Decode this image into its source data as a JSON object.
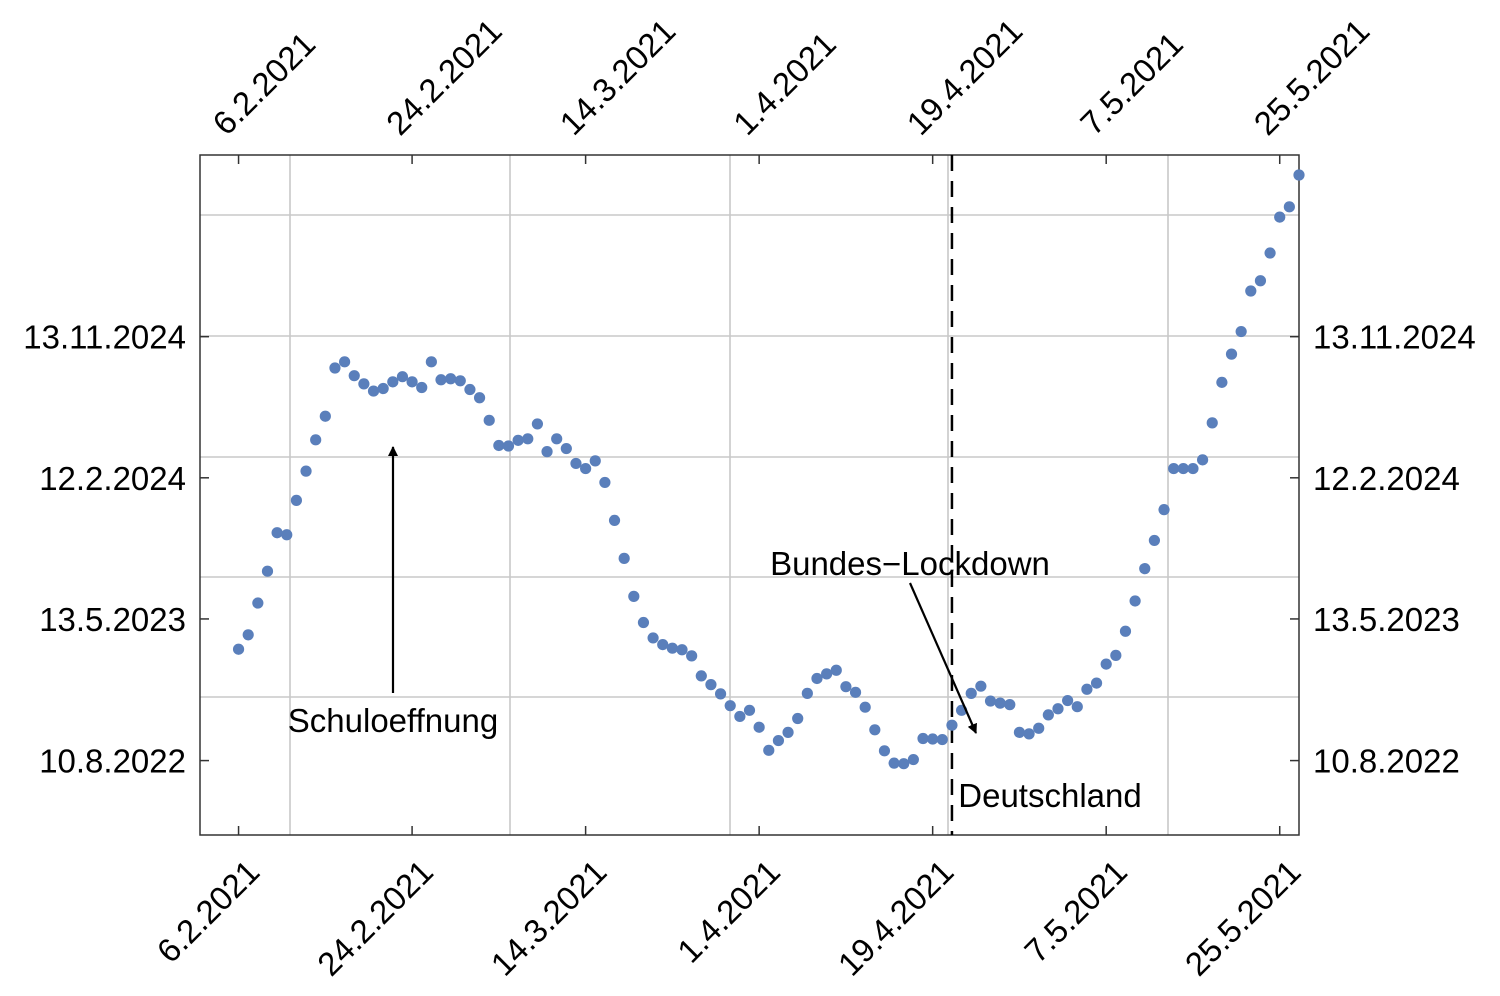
{
  "chart_data": {
    "type": "scatter",
    "x_axis": {
      "ticks": [
        "6.2.2021",
        "24.2.2021",
        "14.3.2021",
        "1.4.2021",
        "19.4.2021",
        "7.5.2021",
        "25.5.2021"
      ],
      "tick_days": [
        0,
        18,
        36,
        54,
        72,
        90,
        108
      ],
      "range": [
        "2.2.2021",
        "27.5.2021"
      ]
    },
    "y_axis": {
      "ticks": [
        "10.8.2022",
        "13.5.2023",
        "12.2.2024",
        "13.11.2024"
      ],
      "range": [
        "18.3.2022",
        "2.11.2025"
      ],
      "tick_labels_as_printed": true
    },
    "grid": true,
    "color": "#5a7fbb",
    "series": [
      {
        "x": [
          0,
          1,
          2,
          3,
          4,
          5,
          6,
          7,
          8,
          9,
          10,
          11,
          12,
          13,
          14,
          15,
          16,
          17,
          18,
          19,
          20,
          21,
          22,
          23,
          24,
          25,
          26,
          27,
          28,
          29,
          30,
          31,
          32,
          33,
          34,
          35,
          36,
          37,
          38,
          39,
          40,
          41,
          42,
          43,
          44,
          45,
          46,
          47,
          48,
          49,
          50,
          51,
          52,
          53,
          54,
          55,
          56,
          57,
          58,
          59,
          60,
          61,
          62,
          63,
          64,
          65,
          66,
          67,
          68,
          69,
          70,
          71,
          72,
          73,
          74,
          75,
          76,
          77,
          78,
          79,
          80,
          81,
          82,
          83,
          84,
          85,
          86,
          87,
          88,
          89,
          90,
          91,
          92,
          93,
          94,
          95,
          96,
          97,
          98,
          99,
          100,
          101,
          102,
          103,
          104,
          105,
          106,
          107,
          108,
          109,
          110
        ],
        "y": [
          "15.3.2023",
          "12.4.2023",
          "13.6.2023",
          "14.8.2023",
          "28.10.2023",
          "24.10.2023",
          "30.12.2023",
          "25.2.2024",
          "26.4.2024",
          "11.6.2024",
          "13.9.2024",
          "25.9.2024",
          "29.8.2024",
          "13.8.2024",
          "30.7.2024",
          "4.8.2024",
          "17.8.2024",
          "27.8.2024",
          "17.8.2024",
          "6.8.2024",
          "25.9.2024",
          "21.8.2024",
          "23.8.2024",
          "19.8.2024",
          "2.8.2024",
          "17.7.2024",
          "3.6.2024",
          "15.4.2024",
          "14.4.2024",
          "25.4.2024",
          "28.4.2024",
          "27.5.2024",
          "3.4.2024",
          "28.4.2024",
          "9.4.2024",
          "11.3.2024",
          "1.3.2024",
          "16.3.2024",
          "3.2.2024",
          "21.11.2023",
          "8.9.2023",
          "26.6.2023",
          "6.5.2023",
          "6.4.2023",
          "24.3.2023",
          "17.3.2023",
          "14.3.2023",
          "2.3.2023",
          "22.1.2023",
          "5.1.2023",
          "18.12.2022",
          "25.11.2022",
          "4.11.2022",
          "16.11.2022",
          "14.10.2022",
          "30.8.2022",
          "18.9.2022",
          "4.10.2022",
          "31.10.2022",
          "19.12.2022",
          "17.1.2023",
          "26.1.2023",
          "2.2.2023",
          "1.1.2023",
          "21.12.2022",
          "22.11.2022",
          "9.10.2022",
          "29.8.2022",
          "5.8.2022",
          "4.8.2022",
          "12.8.2022",
          "22.9.2022",
          "21.9.2022",
          "20.9.2022",
          "18.10.2022",
          "16.11.2022",
          "19.12.2022",
          "2.1.2023",
          "4.12.2022",
          "30.11.2022",
          "27.11.2022",
          "4.10.2022",
          "1.10.2022",
          "12.10.2022",
          "7.11.2022",
          "19.11.2022",
          "5.12.2022",
          "23.11.2022",
          "27.12.2022",
          "8.1.2023",
          "14.2.2023",
          "3.3.2023",
          "19.4.2023",
          "17.6.2023",
          "19.8.2023",
          "13.10.2023",
          "12.12.2023",
          "1.3.2024",
          "1.3.2024",
          "1.3.2024",
          "18.3.2024",
          "29.5.2024",
          "16.8.2024",
          "10.10.2024",
          "23.11.2024",
          "10.2.2025",
          "2.3.2025",
          "25.4.2025",
          "4.7.2025",
          "24.7.2025",
          "24.9.2025"
        ]
      }
    ],
    "vline": {
      "x": 74,
      "style": "dashed"
    },
    "annotations": [
      {
        "text": "Schuloeffnung"
      },
      {
        "text": "Bundes−Lockdown"
      },
      {
        "text": "Deutschland"
      }
    ]
  }
}
